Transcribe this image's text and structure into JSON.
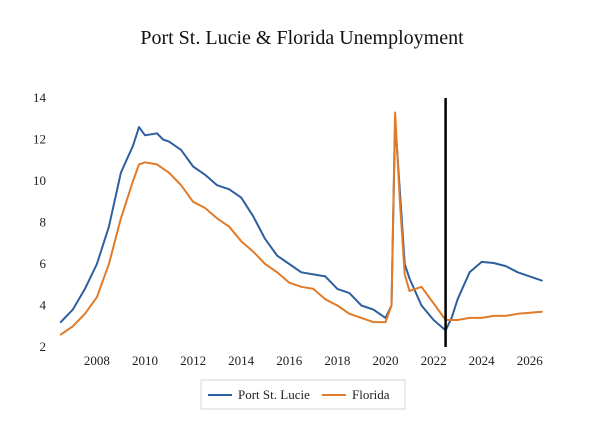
{
  "chart_data": {
    "type": "line",
    "title": "Port St. Lucie & Florida Unemployment",
    "xlabel": "",
    "ylabel": "",
    "xlim": [
      2006.3,
      2026.8
    ],
    "ylim": [
      2,
      14
    ],
    "x_ticks": [
      2008,
      2010,
      2012,
      2014,
      2016,
      2018,
      2020,
      2022,
      2024,
      2026
    ],
    "y_ticks": [
      2,
      4,
      6,
      8,
      10,
      12,
      14
    ],
    "grid": false,
    "legend": "bottom",
    "forecast_marker_x": 2022.5,
    "series": [
      {
        "name": "Port St. Lucie",
        "color": "#2e5f9e",
        "points": [
          [
            2006.5,
            3.2
          ],
          [
            2007.0,
            3.8
          ],
          [
            2007.5,
            4.8
          ],
          [
            2008.0,
            6.0
          ],
          [
            2008.5,
            7.8
          ],
          [
            2009.0,
            10.4
          ],
          [
            2009.5,
            11.7
          ],
          [
            2009.75,
            12.6
          ],
          [
            2010.0,
            12.2
          ],
          [
            2010.5,
            12.3
          ],
          [
            2010.75,
            12.0
          ],
          [
            2011.0,
            11.9
          ],
          [
            2011.5,
            11.5
          ],
          [
            2012.0,
            10.7
          ],
          [
            2012.5,
            10.3
          ],
          [
            2013.0,
            9.8
          ],
          [
            2013.5,
            9.6
          ],
          [
            2014.0,
            9.2
          ],
          [
            2014.5,
            8.3
          ],
          [
            2015.0,
            7.2
          ],
          [
            2015.5,
            6.4
          ],
          [
            2016.0,
            6.0
          ],
          [
            2016.5,
            5.6
          ],
          [
            2017.0,
            5.5
          ],
          [
            2017.5,
            5.4
          ],
          [
            2018.0,
            4.8
          ],
          [
            2018.5,
            4.6
          ],
          [
            2019.0,
            4.0
          ],
          [
            2019.5,
            3.8
          ],
          [
            2020.0,
            3.4
          ],
          [
            2020.25,
            4.0
          ],
          [
            2020.4,
            12.9
          ],
          [
            2020.6,
            9.5
          ],
          [
            2020.8,
            6.0
          ],
          [
            2021.0,
            5.3
          ],
          [
            2021.5,
            4.0
          ],
          [
            2022.0,
            3.3
          ],
          [
            2022.5,
            2.8
          ],
          [
            2022.75,
            3.4
          ],
          [
            2023.0,
            4.3
          ],
          [
            2023.5,
            5.6
          ],
          [
            2024.0,
            6.1
          ],
          [
            2024.5,
            6.05
          ],
          [
            2025.0,
            5.9
          ],
          [
            2025.5,
            5.6
          ],
          [
            2026.0,
            5.4
          ],
          [
            2026.5,
            5.2
          ]
        ]
      },
      {
        "name": "Florida",
        "color": "#e07b2a",
        "points": [
          [
            2006.5,
            2.6
          ],
          [
            2007.0,
            3.0
          ],
          [
            2007.5,
            3.6
          ],
          [
            2008.0,
            4.4
          ],
          [
            2008.5,
            6.0
          ],
          [
            2009.0,
            8.2
          ],
          [
            2009.5,
            10.0
          ],
          [
            2009.75,
            10.8
          ],
          [
            2010.0,
            10.9
          ],
          [
            2010.5,
            10.8
          ],
          [
            2011.0,
            10.4
          ],
          [
            2011.5,
            9.8
          ],
          [
            2012.0,
            9.0
          ],
          [
            2012.5,
            8.7
          ],
          [
            2013.0,
            8.2
          ],
          [
            2013.5,
            7.8
          ],
          [
            2014.0,
            7.1
          ],
          [
            2014.5,
            6.6
          ],
          [
            2015.0,
            6.0
          ],
          [
            2015.5,
            5.6
          ],
          [
            2016.0,
            5.1
          ],
          [
            2016.5,
            4.9
          ],
          [
            2017.0,
            4.8
          ],
          [
            2017.5,
            4.3
          ],
          [
            2018.0,
            4.0
          ],
          [
            2018.5,
            3.6
          ],
          [
            2019.0,
            3.4
          ],
          [
            2019.5,
            3.2
          ],
          [
            2020.0,
            3.2
          ],
          [
            2020.25,
            4.0
          ],
          [
            2020.4,
            13.3
          ],
          [
            2020.6,
            9.0
          ],
          [
            2020.8,
            5.5
          ],
          [
            2021.0,
            4.7
          ],
          [
            2021.5,
            4.9
          ],
          [
            2022.0,
            4.1
          ],
          [
            2022.5,
            3.3
          ],
          [
            2023.0,
            3.3
          ],
          [
            2023.5,
            3.4
          ],
          [
            2024.0,
            3.4
          ],
          [
            2024.5,
            3.5
          ],
          [
            2025.0,
            3.5
          ],
          [
            2025.5,
            3.6
          ],
          [
            2026.0,
            3.65
          ],
          [
            2026.5,
            3.7
          ]
        ]
      }
    ]
  }
}
